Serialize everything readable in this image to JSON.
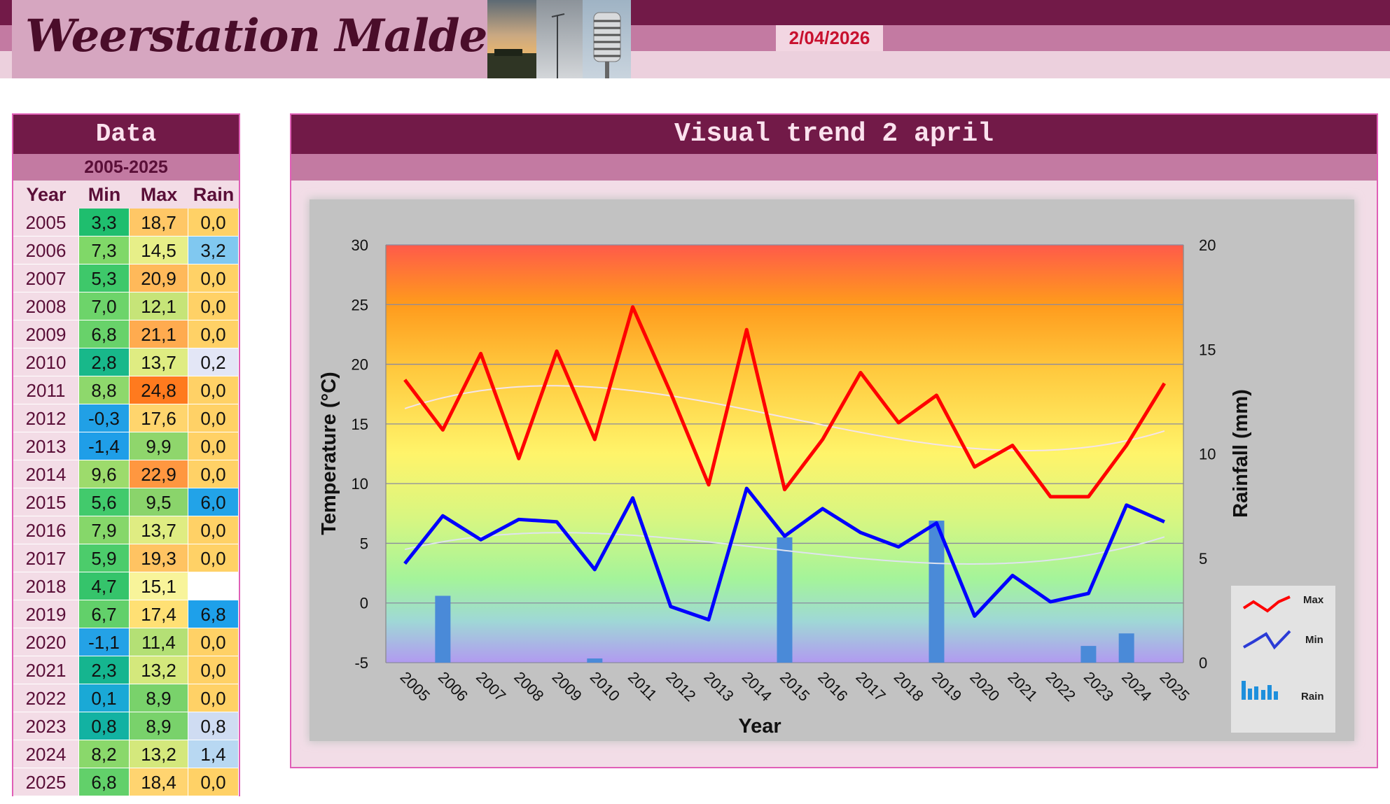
{
  "header": {
    "site_title": "Weerstation Malderen",
    "date": "2/04/2026"
  },
  "table": {
    "title": "Data",
    "range": "2005-2025",
    "columns": [
      "Year",
      "Min",
      "Max",
      "Rain"
    ],
    "rows": [
      [
        "2005",
        "3,3",
        "18,7",
        "0,0"
      ],
      [
        "2006",
        "7,3",
        "14,5",
        "3,2"
      ],
      [
        "2007",
        "5,3",
        "20,9",
        "0,0"
      ],
      [
        "2008",
        "7,0",
        "12,1",
        "0,0"
      ],
      [
        "2009",
        "6,8",
        "21,1",
        "0,0"
      ],
      [
        "2010",
        "2,8",
        "13,7",
        "0,2"
      ],
      [
        "2011",
        "8,8",
        "24,8",
        "0,0"
      ],
      [
        "2012",
        "-0,3",
        "17,6",
        "0,0"
      ],
      [
        "2013",
        "-1,4",
        "9,9",
        "0,0"
      ],
      [
        "2014",
        "9,6",
        "22,9",
        "0,0"
      ],
      [
        "2015",
        "5,6",
        "9,5",
        "6,0"
      ],
      [
        "2016",
        "7,9",
        "13,7",
        "0,0"
      ],
      [
        "2017",
        "5,9",
        "19,3",
        "0,0"
      ],
      [
        "2018",
        "4,7",
        "15,1",
        ""
      ],
      [
        "2019",
        "6,7",
        "17,4",
        "6,8"
      ],
      [
        "2020",
        "-1,1",
        "11,4",
        "0,0"
      ],
      [
        "2021",
        "2,3",
        "13,2",
        "0,0"
      ],
      [
        "2022",
        "0,1",
        "8,9",
        "0,0"
      ],
      [
        "2023",
        "0,8",
        "8,9",
        "0,8"
      ],
      [
        "2024",
        "8,2",
        "13,2",
        "1,4"
      ],
      [
        "2025",
        "6,8",
        "18,4",
        "0,0"
      ]
    ],
    "row_colors": [
      [
        "#1fbe6e",
        "#ffc766",
        "#ffd166"
      ],
      [
        "#80d868",
        "#e7ef88",
        "#80c8f0"
      ],
      [
        "#3ec86a",
        "#ffb95a",
        "#ffd166"
      ],
      [
        "#6dd46a",
        "#c6e478",
        "#ffd166"
      ],
      [
        "#68d26a",
        "#ffab4f",
        "#ffd166"
      ],
      [
        "#18b88a",
        "#dfec82",
        "#e3e6f6"
      ],
      [
        "#8ed86c",
        "#ff7a1e",
        "#ffd166"
      ],
      [
        "#21a0e6",
        "#ffd56d",
        "#ffd166"
      ],
      [
        "#1f9ee8",
        "#8fd66c",
        "#ffd166"
      ],
      [
        "#9ddb6c",
        "#ff9740",
        "#ffd166"
      ],
      [
        "#42ca6c",
        "#8ad46b",
        "#22a3e8"
      ],
      [
        "#86d76a",
        "#dfec82",
        "#ffd166"
      ],
      [
        "#4ccc6b",
        "#ffc362",
        "#ffd166"
      ],
      [
        "#35c46b",
        "#f8f49a",
        "#ffffff"
      ],
      [
        "#62d06a",
        "#ffe074",
        "#1ea0ea"
      ],
      [
        "#24a2e6",
        "#b4e075",
        "#ffd166"
      ],
      [
        "#15b58f",
        "#d4e87c",
        "#ffd166"
      ],
      [
        "#1aa9d6",
        "#79d26b",
        "#ffd166"
      ],
      [
        "#12b2a2",
        "#79d26b",
        "#cfdcf2"
      ],
      [
        "#8ad86b",
        "#d4e87c",
        "#b8d8f2"
      ],
      [
        "#62d06a",
        "#ffd470",
        "#ffd166"
      ]
    ]
  },
  "chart_panel": {
    "title": "Visual trend 2 april"
  },
  "chart_data": {
    "type": "line",
    "x": [
      2005,
      2006,
      2007,
      2008,
      2009,
      2010,
      2011,
      2012,
      2013,
      2014,
      2015,
      2016,
      2017,
      2018,
      2019,
      2020,
      2021,
      2022,
      2023,
      2024,
      2025
    ],
    "series": [
      {
        "name": "Max",
        "axis": "left",
        "type": "line",
        "color": "#ff0000",
        "values": [
          18.7,
          14.5,
          20.9,
          12.1,
          21.1,
          13.7,
          24.8,
          17.6,
          9.9,
          22.9,
          9.5,
          13.7,
          19.3,
          15.1,
          17.4,
          11.4,
          13.2,
          8.9,
          8.9,
          13.2,
          18.4
        ]
      },
      {
        "name": "Min",
        "axis": "left",
        "type": "line",
        "color": "#0000ff",
        "values": [
          3.3,
          7.3,
          5.3,
          7.0,
          6.8,
          2.8,
          8.8,
          -0.3,
          -1.4,
          9.6,
          5.6,
          7.9,
          5.9,
          4.7,
          6.7,
          -1.1,
          2.3,
          0.1,
          0.8,
          8.2,
          6.8
        ]
      },
      {
        "name": "Rain",
        "axis": "right",
        "type": "bar",
        "color": "#4a8ad8",
        "values": [
          0.0,
          3.2,
          0.0,
          0.0,
          0.0,
          0.2,
          0.0,
          0.0,
          0.0,
          0.0,
          6.0,
          0.0,
          0.0,
          null,
          6.8,
          0.0,
          0.0,
          0.0,
          0.8,
          1.4,
          0.0
        ]
      }
    ],
    "trend_lines": {
      "max_color": "#f4e4ea",
      "min_color": "#dfe3ef"
    },
    "xlabel": "Year",
    "ylabel": "Temperature (°C)",
    "y2label": "Rainfall (mm)",
    "ylim": [
      -5,
      30
    ],
    "y2lim": [
      0,
      20
    ],
    "yticks": [
      -5,
      0,
      5,
      10,
      15,
      20,
      25,
      30
    ],
    "y2ticks": [
      0,
      5,
      10,
      15,
      20
    ],
    "grid": true,
    "legend_position": "bottom-right",
    "legend": [
      "Max",
      "Min",
      "Rain"
    ]
  }
}
